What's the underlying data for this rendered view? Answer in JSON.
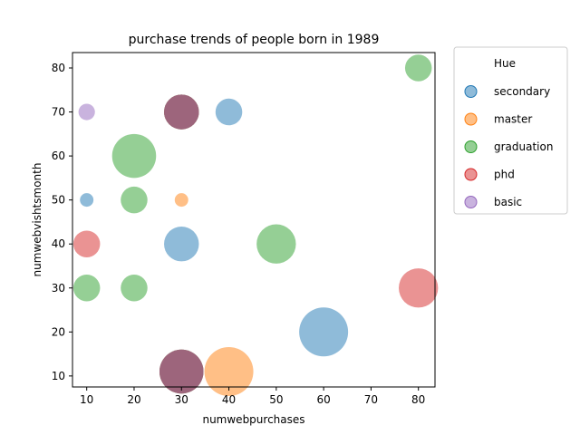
{
  "chart_data": {
    "type": "scatter",
    "title": "purchase trends of people born in 1989",
    "xlabel": "numwebpurchases",
    "ylabel": "numwebvishtsmonth",
    "xlim": [
      7,
      83.5
    ],
    "ylim": [
      7.5,
      83.5
    ],
    "xticks": [
      10,
      20,
      30,
      40,
      50,
      60,
      70,
      80
    ],
    "yticks": [
      10,
      20,
      30,
      40,
      50,
      60,
      70,
      80
    ],
    "grid": false,
    "legend_position": "outside-right",
    "legend_title": "Hue",
    "series": [
      {
        "name": "secondary",
        "color": "#1f77b4",
        "points": [
          {
            "x": 10,
            "y": 50,
            "size": 1
          },
          {
            "x": 40,
            "y": 70,
            "size": 5
          },
          {
            "x": 30,
            "y": 40,
            "size": 7
          },
          {
            "x": 60,
            "y": 20,
            "size": 10
          },
          {
            "x": 30,
            "y": 70,
            "size": 7
          },
          {
            "x": 30,
            "y": 11,
            "size": 9
          }
        ]
      },
      {
        "name": "master",
        "color": "#ff7f0e",
        "points": [
          {
            "x": 30,
            "y": 50,
            "size": 1
          },
          {
            "x": 40,
            "y": 11,
            "size": 10
          },
          {
            "x": 30,
            "y": 70,
            "size": 7
          },
          {
            "x": 30,
            "y": 11,
            "size": 9
          }
        ]
      },
      {
        "name": "graduation",
        "color": "#2ca02c",
        "points": [
          {
            "x": 80,
            "y": 80,
            "size": 5
          },
          {
            "x": 20,
            "y": 60,
            "size": 9
          },
          {
            "x": 20,
            "y": 50,
            "size": 5
          },
          {
            "x": 50,
            "y": 40,
            "size": 8
          },
          {
            "x": 10,
            "y": 30,
            "size": 5
          },
          {
            "x": 20,
            "y": 30,
            "size": 5
          },
          {
            "x": 30,
            "y": 70,
            "size": 7
          },
          {
            "x": 30,
            "y": 11,
            "size": 9
          }
        ]
      },
      {
        "name": "phd",
        "color": "#d62728",
        "points": [
          {
            "x": 10,
            "y": 40,
            "size": 5
          },
          {
            "x": 80,
            "y": 30,
            "size": 8
          },
          {
            "x": 30,
            "y": 70,
            "size": 7
          },
          {
            "x": 30,
            "y": 11,
            "size": 9
          }
        ]
      },
      {
        "name": "basic",
        "color": "#9467bd",
        "points": [
          {
            "x": 10,
            "y": 70,
            "size": 2
          },
          {
            "x": 30,
            "y": 70,
            "size": 7
          },
          {
            "x": 30,
            "y": 11,
            "size": 9
          }
        ]
      }
    ]
  }
}
